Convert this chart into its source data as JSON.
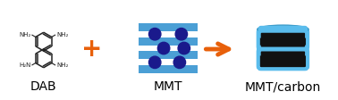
{
  "fig_width": 3.78,
  "fig_height": 1.12,
  "dpi": 100,
  "bg_color": "#ffffff",
  "label_dab": "DAB",
  "label_mmt": "MMT",
  "label_mmt_carbon": "MMT/carbon",
  "label_fontsize": 10,
  "plus_color": "#e8600a",
  "arrow_color": "#e8600a",
  "blue_stripe_color": "#4b9fd5",
  "circle_color": "#1a1a8c",
  "black_color": "#0d0d0d",
  "cyan_color": "#5abcec",
  "dark_cyan": "#3a9ac8",
  "box_black": "#111111",
  "mol_color": "#222222"
}
